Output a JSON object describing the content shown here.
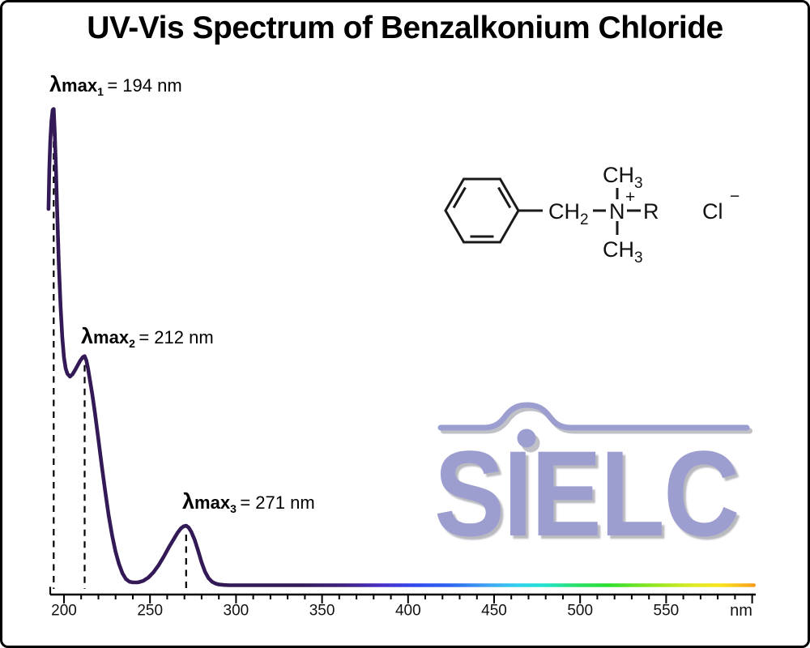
{
  "title": "UV-Vis Spectrum of Benzalkonium Chloride",
  "peak_labels": [
    {
      "lambda": "λ",
      "max": "max",
      "sub": "1",
      "eq": "= 194 nm"
    },
    {
      "lambda": "λ",
      "max": "max",
      "sub": "2",
      "eq": "= 212 nm"
    },
    {
      "lambda": "λ",
      "max": "max",
      "sub": "3",
      "eq": "= 271 nm"
    }
  ],
  "axis": {
    "unit": "nm",
    "tick_labels": [
      {
        "nm": 200,
        "label": "200"
      },
      {
        "nm": 250,
        "label": "250"
      },
      {
        "nm": 300,
        "label": "300"
      },
      {
        "nm": 350,
        "label": "350"
      },
      {
        "nm": 400,
        "label": "400"
      },
      {
        "nm": 450,
        "label": "450"
      },
      {
        "nm": 500,
        "label": "500"
      },
      {
        "nm": 550,
        "label": "550"
      }
    ]
  },
  "molecule": {
    "ch2": "CH",
    "ch2_sub": "2",
    "n": "N",
    "charge": "+",
    "r": "R",
    "ch3": "CH",
    "ch3_sub": "3",
    "counterion": "Cl",
    "counterion_charge": "−"
  },
  "logo": {
    "text": "SIELC",
    "color": "#9d9ed0"
  },
  "colors": {
    "curve": "#331a57",
    "logo": "#9d9ed0"
  },
  "chart_data": {
    "type": "line",
    "title": "UV-Vis Spectrum of Benzalkonium Chloride",
    "xlabel": "nm",
    "x_range": [
      191,
      601
    ],
    "x_ticks": [
      200,
      250,
      300,
      350,
      400,
      450,
      500,
      550
    ],
    "grid": false,
    "legend": false,
    "y_axis_shown": false,
    "y_values_are": "relative absorbance (normalized, estimated from figure)",
    "peaks": [
      {
        "name": "λmax1",
        "nm": 194,
        "a": 1.0
      },
      {
        "name": "λmax2",
        "nm": 212,
        "a": 0.481
      },
      {
        "name": "λmax3",
        "nm": 271,
        "a": 0.125
      }
    ],
    "curve": [
      [
        191,
        0.79
      ],
      [
        191.5,
        0.875
      ],
      [
        192,
        0.93
      ],
      [
        192.7,
        0.975
      ],
      [
        193.4,
        0.998
      ],
      [
        194,
        1.0
      ],
      [
        194.6,
        0.955
      ],
      [
        195.3,
        0.88
      ],
      [
        196,
        0.79
      ],
      [
        197,
        0.675
      ],
      [
        198,
        0.585
      ],
      [
        199,
        0.52
      ],
      [
        200,
        0.478
      ],
      [
        201,
        0.455
      ],
      [
        202,
        0.444
      ],
      [
        203.5,
        0.438
      ],
      [
        205,
        0.443
      ],
      [
        206.5,
        0.452
      ],
      [
        208,
        0.462
      ],
      [
        209.5,
        0.472
      ],
      [
        211,
        0.479
      ],
      [
        212,
        0.481
      ],
      [
        213,
        0.472
      ],
      [
        214,
        0.455
      ],
      [
        215,
        0.432
      ],
      [
        216.5,
        0.4
      ],
      [
        218,
        0.362
      ],
      [
        220,
        0.306
      ],
      [
        222,
        0.25
      ],
      [
        224,
        0.196
      ],
      [
        226,
        0.146
      ],
      [
        228,
        0.104
      ],
      [
        230,
        0.07
      ],
      [
        232,
        0.044
      ],
      [
        234,
        0.025
      ],
      [
        236,
        0.013
      ],
      [
        238,
        0.0075
      ],
      [
        240,
        0.006
      ],
      [
        243,
        0.006
      ],
      [
        246,
        0.009
      ],
      [
        249,
        0.016
      ],
      [
        252,
        0.027
      ],
      [
        255,
        0.042
      ],
      [
        258,
        0.06
      ],
      [
        261,
        0.08
      ],
      [
        264,
        0.098
      ],
      [
        266,
        0.11
      ],
      [
        268,
        0.1195
      ],
      [
        269.5,
        0.1235
      ],
      [
        271,
        0.125
      ],
      [
        272.5,
        0.121
      ],
      [
        274,
        0.112
      ],
      [
        276,
        0.095
      ],
      [
        278,
        0.072
      ],
      [
        280,
        0.048
      ],
      [
        282,
        0.028
      ],
      [
        284,
        0.015
      ],
      [
        286,
        0.0075
      ],
      [
        288,
        0.0035
      ],
      [
        290,
        0.0015
      ],
      [
        293,
        0.0005
      ],
      [
        296,
        0
      ],
      [
        320,
        0
      ],
      [
        360,
        0
      ],
      [
        400,
        0
      ],
      [
        440,
        0
      ],
      [
        480,
        0
      ],
      [
        520,
        0
      ],
      [
        560,
        0
      ],
      [
        601,
        0
      ]
    ],
    "spectrum_gradient": [
      [
        0.0,
        "#331a57"
      ],
      [
        0.35,
        "#331a57"
      ],
      [
        0.415,
        "#3f2180"
      ],
      [
        0.47,
        "#4a2fc8"
      ],
      [
        0.515,
        "#3247ee"
      ],
      [
        0.565,
        "#2b62f2"
      ],
      [
        0.62,
        "#3fa4f2"
      ],
      [
        0.665,
        "#2fd2ef"
      ],
      [
        0.7,
        "#1fe3cf"
      ],
      [
        0.745,
        "#27e06a"
      ],
      [
        0.79,
        "#2ade2e"
      ],
      [
        0.85,
        "#8ae51f"
      ],
      [
        0.91,
        "#dcea22"
      ],
      [
        0.95,
        "#fbe51c"
      ],
      [
        1.0,
        "#f89b1b"
      ]
    ]
  }
}
